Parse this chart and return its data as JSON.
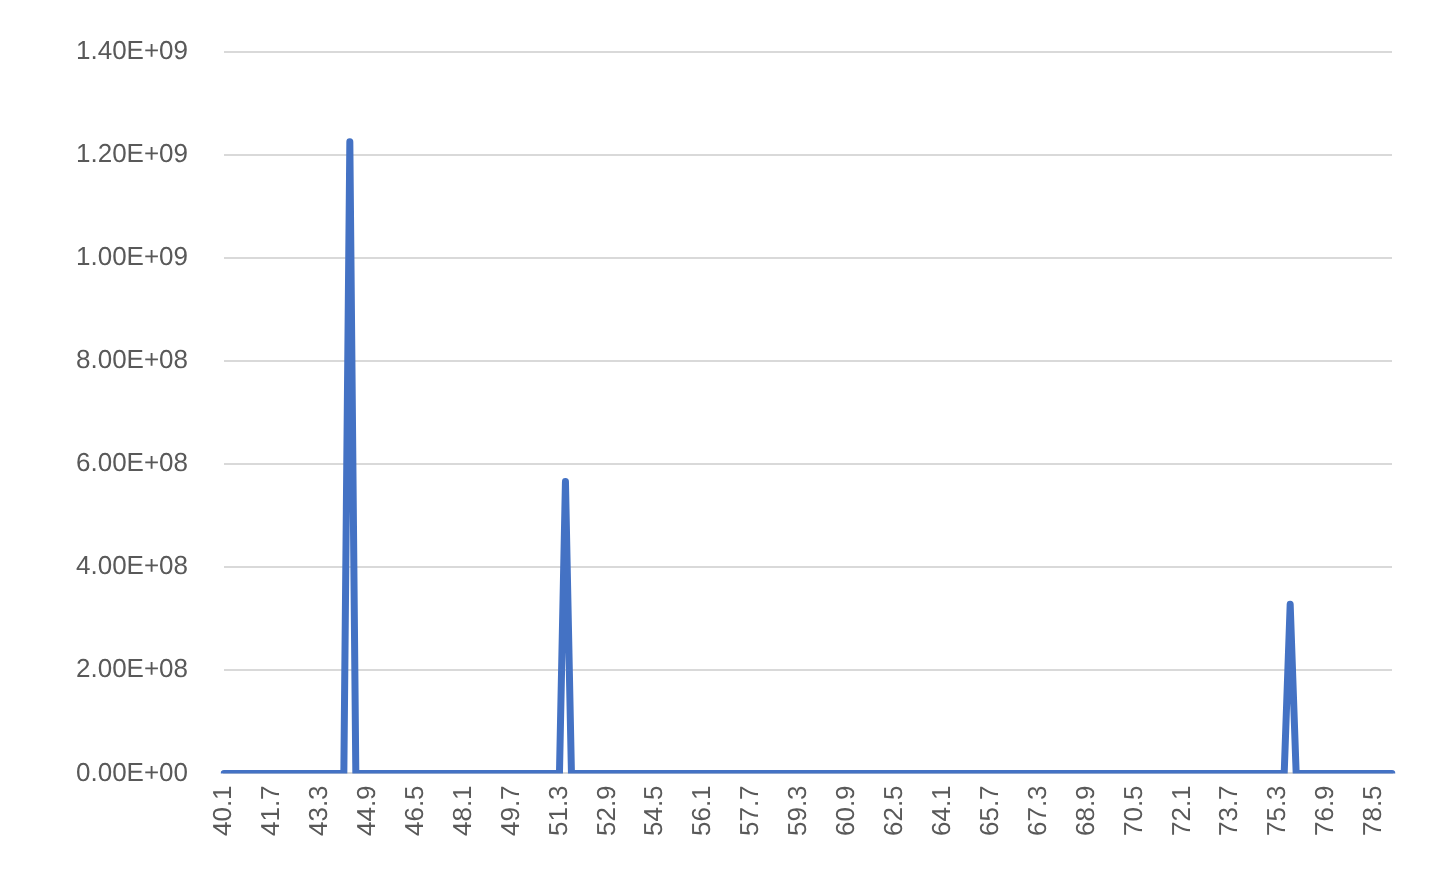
{
  "chart_data": {
    "type": "line",
    "categories": [
      "40.1",
      null,
      null,
      null,
      null,
      null,
      null,
      null,
      "41.7",
      null,
      null,
      null,
      null,
      null,
      null,
      null,
      "43.3",
      null,
      null,
      null,
      null,
      null,
      null,
      null,
      "44.9",
      null,
      null,
      null,
      null,
      null,
      null,
      null,
      "46.5",
      null,
      null,
      null,
      null,
      null,
      null,
      null,
      "48.1",
      null,
      null,
      null,
      null,
      null,
      null,
      null,
      "49.7",
      null,
      null,
      null,
      null,
      null,
      null,
      null,
      "51.3",
      null,
      null,
      null,
      null,
      null,
      null,
      null,
      "52.9",
      null,
      null,
      null,
      null,
      null,
      null,
      null,
      "54.5",
      null,
      null,
      null,
      null,
      null,
      null,
      null,
      "56.1",
      null,
      null,
      null,
      null,
      null,
      null,
      null,
      "57.7",
      null,
      null,
      null,
      null,
      null,
      null,
      null,
      "59.3",
      null,
      null,
      null,
      null,
      null,
      null,
      null,
      "60.9",
      null,
      null,
      null,
      null,
      null,
      null,
      null,
      "62.5",
      null,
      null,
      null,
      null,
      null,
      null,
      null,
      "64.1",
      null,
      null,
      null,
      null,
      null,
      null,
      null,
      "65.7",
      null,
      null,
      null,
      null,
      null,
      null,
      null,
      "67.3",
      null,
      null,
      null,
      null,
      null,
      null,
      null,
      "68.9",
      null,
      null,
      null,
      null,
      null,
      null,
      null,
      "70.5",
      null,
      null,
      null,
      null,
      null,
      null,
      null,
      "72.1",
      null,
      null,
      null,
      null,
      null,
      null,
      null,
      "73.7",
      null,
      null,
      null,
      null,
      null,
      null,
      null,
      "75.3",
      null,
      null,
      null,
      null,
      null,
      null,
      null,
      "76.9",
      null,
      null,
      null,
      null,
      null,
      null,
      null,
      "78.5",
      null,
      null,
      null
    ],
    "series": [
      {
        "color": "#4472c4",
        "values": [
          0,
          0,
          0,
          0,
          0,
          0,
          0,
          0,
          0,
          0,
          0,
          0,
          0,
          0,
          0,
          0,
          0,
          0,
          0,
          0,
          0,
          1225000000,
          0,
          0,
          0,
          0,
          0,
          0,
          0,
          0,
          0,
          0,
          0,
          0,
          0,
          0,
          0,
          0,
          0,
          0,
          0,
          0,
          0,
          0,
          0,
          0,
          0,
          0,
          0,
          0,
          0,
          0,
          0,
          0,
          0,
          0,
          0,
          566000000,
          0,
          0,
          0,
          0,
          0,
          0,
          0,
          0,
          0,
          0,
          0,
          0,
          0,
          0,
          0,
          0,
          0,
          0,
          0,
          0,
          0,
          0,
          0,
          0,
          0,
          0,
          0,
          0,
          0,
          0,
          0,
          0,
          0,
          0,
          0,
          0,
          0,
          0,
          0,
          0,
          0,
          0,
          0,
          0,
          0,
          0,
          0,
          0,
          0,
          0,
          0,
          0,
          0,
          0,
          0,
          0,
          0,
          0,
          0,
          0,
          0,
          0,
          0,
          0,
          0,
          0,
          0,
          0,
          0,
          0,
          0,
          0,
          0,
          0,
          0,
          0,
          0,
          0,
          0,
          0,
          0,
          0,
          0,
          0,
          0,
          0,
          0,
          0,
          0,
          0,
          0,
          0,
          0,
          0,
          0,
          0,
          0,
          0,
          0,
          0,
          0,
          0,
          0,
          0,
          0,
          0,
          0,
          0,
          0,
          0,
          0,
          0,
          0,
          0,
          0,
          0,
          0,
          0,
          0,
          0,
          328000000,
          0,
          0,
          0,
          0,
          0,
          0,
          0,
          0,
          0,
          0,
          0,
          0,
          0,
          0,
          0,
          0,
          0
        ]
      }
    ],
    "ylim": [
      0,
      1400000000
    ],
    "yticks": [
      {
        "value": 0,
        "label": "0.00E+00"
      },
      {
        "value": 200000000,
        "label": "2.00E+08"
      },
      {
        "value": 400000000,
        "label": "4.00E+08"
      },
      {
        "value": 600000000,
        "label": "6.00E+08"
      },
      {
        "value": 800000000,
        "label": "8.00E+08"
      },
      {
        "value": 1000000000,
        "label": "1.00E+09"
      },
      {
        "value": 1200000000,
        "label": "1.20E+09"
      },
      {
        "value": 1400000000,
        "label": "1.40E+09"
      }
    ],
    "grid": "y",
    "legend": false,
    "marker": "none",
    "line_style": "solid"
  }
}
